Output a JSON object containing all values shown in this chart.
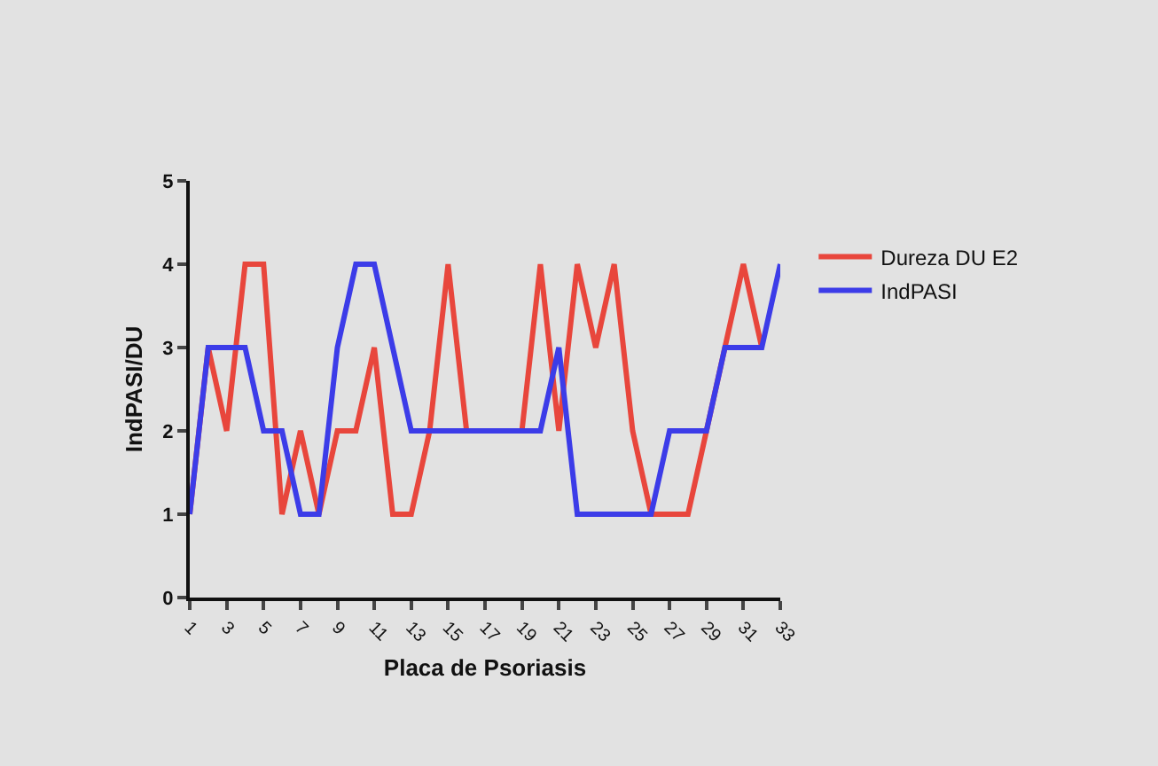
{
  "chart_data": {
    "type": "line",
    "xlabel": "Placa de Psoriasis",
    "ylabel": "IndPASI/DU",
    "x": [
      1,
      2,
      3,
      4,
      5,
      6,
      7,
      8,
      9,
      10,
      11,
      12,
      13,
      14,
      15,
      16,
      17,
      18,
      19,
      20,
      21,
      22,
      23,
      24,
      25,
      26,
      27,
      28,
      29,
      30,
      31,
      32,
      33
    ],
    "series": [
      {
        "name": "Dureza DU E2",
        "color": "#e8463c",
        "values": [
          1,
          3,
          2,
          4,
          4,
          1,
          2,
          1,
          2,
          2,
          3,
          1,
          1,
          2,
          4,
          2,
          null,
          null,
          2,
          4,
          2,
          4,
          3,
          4,
          2,
          1,
          1,
          1,
          2,
          3,
          4,
          3,
          null
        ]
      },
      {
        "name": "IndPASI",
        "color": "#3c3ce8",
        "values": [
          1,
          3,
          3,
          3,
          2,
          2,
          1,
          1,
          3,
          4,
          4,
          3,
          2,
          2,
          2,
          2,
          2,
          2,
          2,
          2,
          3,
          1,
          1,
          1,
          1,
          1,
          2,
          2,
          2,
          3,
          3,
          3,
          4
        ]
      }
    ],
    "xlim": [
      1,
      33
    ],
    "xticks": [
      1,
      3,
      5,
      7,
      9,
      11,
      13,
      15,
      17,
      19,
      21,
      23,
      25,
      27,
      29,
      31,
      33
    ],
    "ylim": [
      0,
      5
    ],
    "yticks": [
      0,
      1,
      2,
      3,
      4,
      5
    ],
    "grid": false,
    "legend": "right",
    "marker": "none",
    "line_style": "solid"
  }
}
